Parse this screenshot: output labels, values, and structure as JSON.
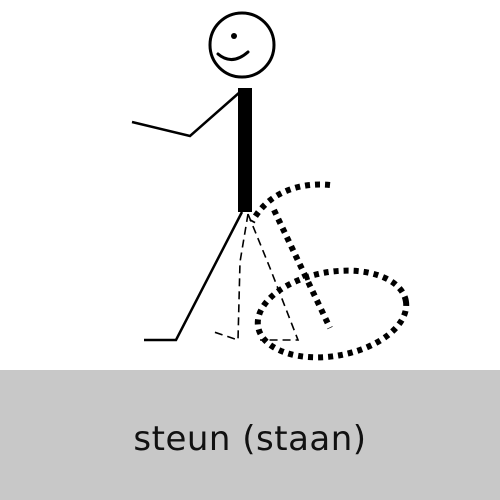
{
  "card": {
    "caption": "steun (staan)",
    "caption_background": "#c8c8c8",
    "figure_color": "#000000"
  },
  "icons": {
    "figure": "stick-figure-standing-icon",
    "motion": "leg-swing-motion-icon"
  }
}
